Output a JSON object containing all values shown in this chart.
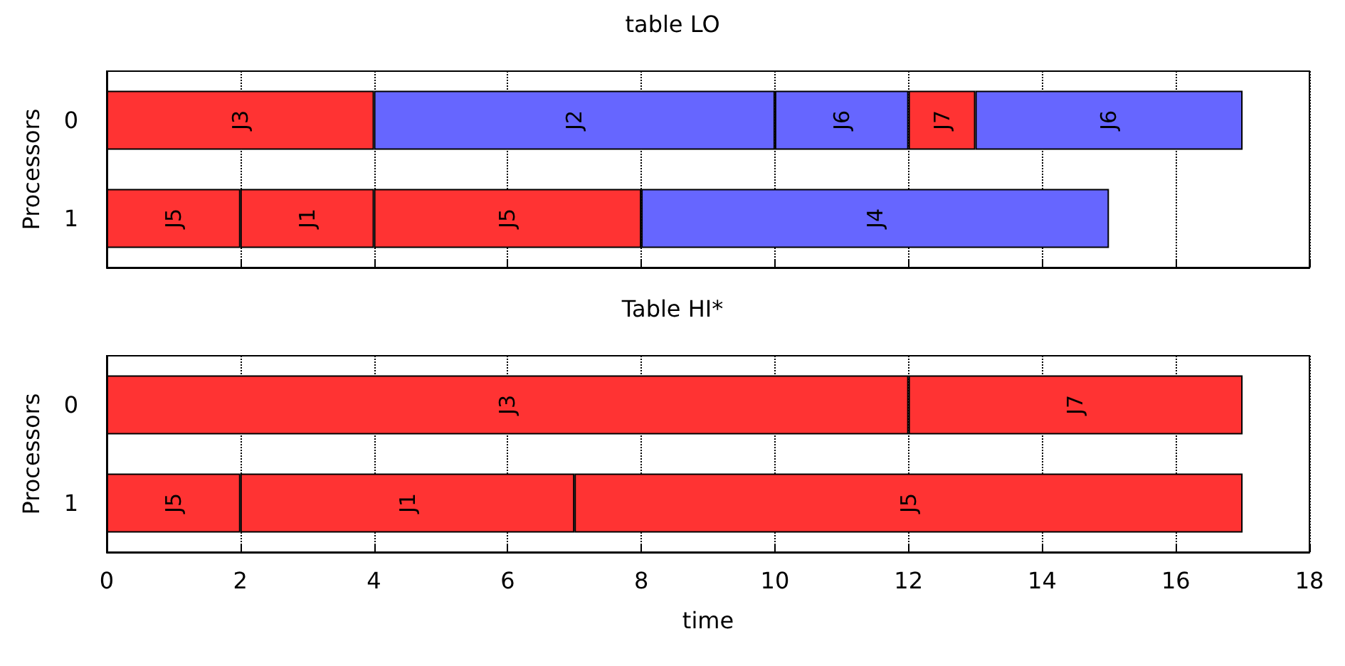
{
  "chart_data": [
    {
      "type": "bar",
      "title": "table LO",
      "ylabel": "Processors",
      "orientation": "horizontal",
      "stacked": true,
      "categories": [
        "0",
        "1"
      ],
      "xlim": [
        0,
        18
      ],
      "xticks": [
        0,
        2,
        4,
        6,
        8,
        10,
        12,
        14,
        16,
        18
      ],
      "grid": "x",
      "tick_labels": "y",
      "series": [
        {
          "values": [
            4,
            2
          ],
          "colors": [
            "#ff3333",
            "#ff3333"
          ],
          "value_labels": [
            "J3",
            "J5"
          ]
        },
        {
          "values": [
            6,
            2
          ],
          "colors": [
            "#6666ff",
            "#ff3333"
          ],
          "value_labels": [
            "J2",
            "J1"
          ]
        },
        {
          "values": [
            2,
            4
          ],
          "colors": [
            "#6666ff",
            "#ff3333"
          ],
          "value_labels": [
            "J6",
            "J5"
          ]
        },
        {
          "values": [
            1,
            7
          ],
          "colors": [
            "#ff3333",
            "#6666ff"
          ],
          "value_labels": [
            "J7",
            "J4"
          ]
        },
        {
          "values": [
            4,
            null
          ],
          "colors": [
            "#6666ff",
            null
          ],
          "value_labels": [
            "J6",
            null
          ]
        }
      ]
    },
    {
      "type": "bar",
      "title": "Table HI*",
      "xlabel": "time",
      "ylabel": "Processors",
      "orientation": "horizontal",
      "stacked": true,
      "categories": [
        "0",
        "1"
      ],
      "xlim": [
        0,
        18
      ],
      "xticks": [
        0,
        2,
        4,
        6,
        8,
        10,
        12,
        14,
        16,
        18
      ],
      "grid": "x",
      "series": [
        {
          "values": [
            12,
            2
          ],
          "colors": [
            "#ff3333",
            "#ff3333"
          ],
          "value_labels": [
            "J3",
            "J5"
          ]
        },
        {
          "values": [
            5,
            5
          ],
          "colors": [
            "#ff3333",
            "#ff3333"
          ],
          "value_labels": [
            "J7",
            "J1"
          ]
        },
        {
          "values": [
            null,
            10
          ],
          "colors": [
            null,
            "#ff3333"
          ],
          "value_labels": [
            null,
            "J5"
          ]
        }
      ]
    }
  ]
}
